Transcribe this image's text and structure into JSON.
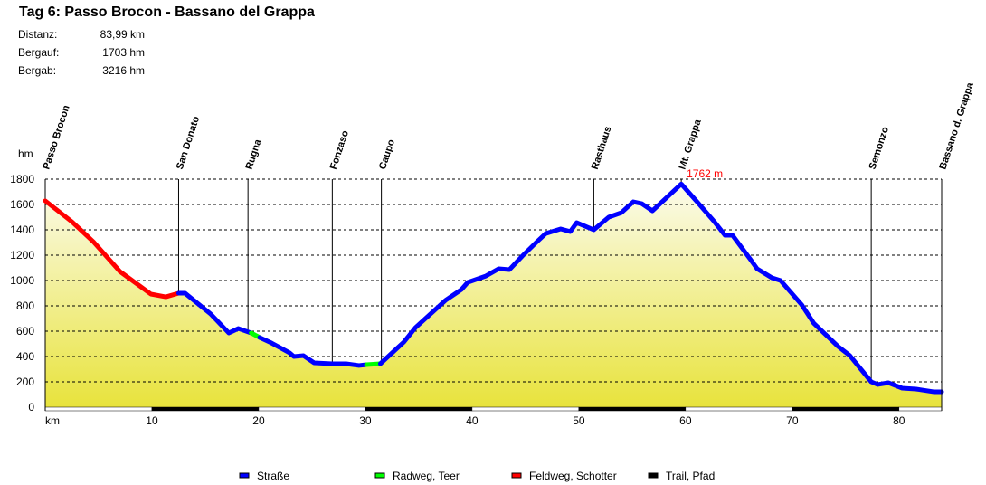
{
  "header": {
    "title": "Tag 6: Passo Brocon - Bassano del Grappa",
    "stats": [
      {
        "label": "Distanz:",
        "value": "83,99 km"
      },
      {
        "label": "Bergauf:",
        "value": "1703 hm"
      },
      {
        "label": "Bergab:",
        "value": "3216 hm"
      }
    ]
  },
  "chart_data": {
    "type": "area",
    "title": "",
    "xlabel": "km",
    "ylabel": "hm",
    "xlim": [
      0,
      84
    ],
    "ylim": [
      0,
      1800
    ],
    "xticks": [
      10,
      20,
      30,
      40,
      50,
      60,
      70,
      80
    ],
    "yticks": [
      0,
      200,
      400,
      600,
      800,
      1000,
      1200,
      1400,
      1600,
      1800
    ],
    "grid": "horizontal dashed",
    "fill_colors": {
      "top": "#fbfbec",
      "bottom": "#e8e33c"
    },
    "max_annotation": {
      "km": 59.6,
      "elev": 1762,
      "text": "1762 m",
      "color": "#ff0000"
    },
    "waypoints": [
      {
        "name": "Passo Brocon",
        "km": 0
      },
      {
        "name": "San Donato",
        "km": 12.5
      },
      {
        "name": "Rugna",
        "km": 19.0
      },
      {
        "name": "Fonzaso",
        "km": 26.9
      },
      {
        "name": "Caupo",
        "km": 31.5
      },
      {
        "name": "Rasthaus",
        "km": 51.4
      },
      {
        "name": "Mt. Grappa",
        "km": 59.6
      },
      {
        "name": "Semonzo",
        "km": 77.4
      },
      {
        "name": "Bassano d. Grappa",
        "km": 84
      }
    ],
    "profile": [
      [
        0,
        1629
      ],
      [
        2.5,
        1464
      ],
      [
        4.5,
        1307
      ],
      [
        7.0,
        1071
      ],
      [
        8.5,
        979
      ],
      [
        9.9,
        893
      ],
      [
        11.3,
        871
      ],
      [
        12.5,
        900
      ],
      [
        13.1,
        900
      ],
      [
        15.5,
        736
      ],
      [
        17.2,
        586
      ],
      [
        18.1,
        621
      ],
      [
        19.3,
        586
      ],
      [
        20.1,
        550
      ],
      [
        21.2,
        507
      ],
      [
        22.9,
        429
      ],
      [
        23.3,
        400
      ],
      [
        24.2,
        407
      ],
      [
        25.2,
        350
      ],
      [
        26.9,
        343
      ],
      [
        28.2,
        343
      ],
      [
        29.4,
        329
      ],
      [
        30.1,
        336
      ],
      [
        31.4,
        343
      ],
      [
        33.6,
        514
      ],
      [
        34.7,
        629
      ],
      [
        37.5,
        843
      ],
      [
        39.0,
        929
      ],
      [
        39.6,
        986
      ],
      [
        41.3,
        1036
      ],
      [
        42.5,
        1093
      ],
      [
        43.5,
        1086
      ],
      [
        44.7,
        1193
      ],
      [
        46.0,
        1300
      ],
      [
        46.9,
        1371
      ],
      [
        48.3,
        1407
      ],
      [
        49.2,
        1386
      ],
      [
        49.8,
        1457
      ],
      [
        51.4,
        1400
      ],
      [
        52.8,
        1500
      ],
      [
        54.0,
        1536
      ],
      [
        55.1,
        1621
      ],
      [
        55.9,
        1607
      ],
      [
        56.9,
        1550
      ],
      [
        59.6,
        1762
      ],
      [
        61.0,
        1629
      ],
      [
        62.7,
        1464
      ],
      [
        63.7,
        1357
      ],
      [
        64.4,
        1357
      ],
      [
        66.1,
        1164
      ],
      [
        66.7,
        1093
      ],
      [
        68.1,
        1021
      ],
      [
        68.9,
        1000
      ],
      [
        70.9,
        807
      ],
      [
        72.0,
        664
      ],
      [
        74.3,
        479
      ],
      [
        75.4,
        407
      ],
      [
        77.4,
        200
      ],
      [
        78.0,
        179
      ],
      [
        79.0,
        193
      ],
      [
        80.3,
        150
      ],
      [
        81.6,
        143
      ],
      [
        83.3,
        121
      ],
      [
        84,
        121
      ]
    ],
    "segments": [
      {
        "from": 0,
        "to": 12.5,
        "type": "Feldweg, Schotter"
      },
      {
        "from": 12.5,
        "to": 19.3,
        "type": "Straße"
      },
      {
        "from": 19.3,
        "to": 20.1,
        "type": "Radweg, Teer"
      },
      {
        "from": 20.1,
        "to": 30.1,
        "type": "Straße"
      },
      {
        "from": 30.1,
        "to": 31.4,
        "type": "Radweg, Teer"
      },
      {
        "from": 31.4,
        "to": 84,
        "type": "Straße"
      }
    ],
    "legend": {
      "placement": "bottom",
      "items": [
        {
          "name": "Straße",
          "color": "#0000ff"
        },
        {
          "name": "Radweg, Teer",
          "color": "#00ff00"
        },
        {
          "name": "Feldweg, Schotter",
          "color": "#ff0000"
        },
        {
          "name": "Trail, Pfad",
          "color": "#000000"
        }
      ]
    }
  }
}
